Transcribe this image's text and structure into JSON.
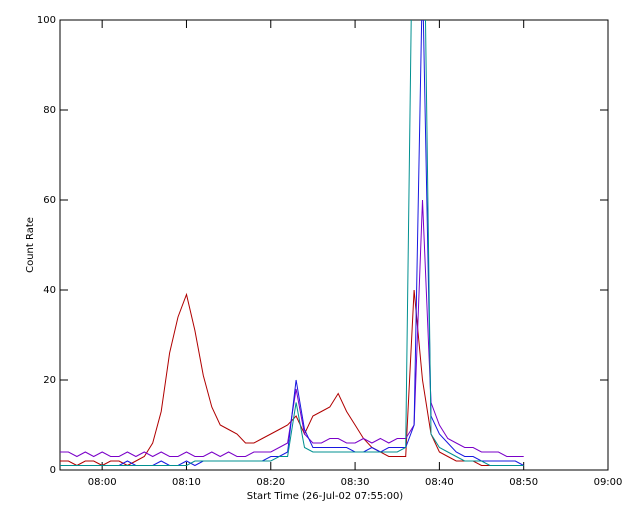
{
  "chart_data": {
    "type": "line",
    "y_label": "Count Rate",
    "x_label": "Start Time (26-Jul-02 07:55:00)",
    "x": [
      "07:55",
      "07:56",
      "07:57",
      "07:58",
      "07:59",
      "08:00",
      "08:01",
      "08:02",
      "08:03",
      "08:04",
      "08:05",
      "08:06",
      "08:07",
      "08:08",
      "08:09",
      "08:10",
      "08:11",
      "08:12",
      "08:13",
      "08:14",
      "08:15",
      "08:16",
      "08:17",
      "08:18",
      "08:19",
      "08:20",
      "08:21",
      "08:22",
      "08:23",
      "08:24",
      "08:25",
      "08:26",
      "08:27",
      "08:28",
      "08:29",
      "08:30",
      "08:31",
      "08:32",
      "08:33",
      "08:34",
      "08:35",
      "08:36",
      "08:37",
      "08:38",
      "08:39",
      "08:40",
      "08:41",
      "08:42",
      "08:43",
      "08:44",
      "08:45",
      "08:46",
      "08:47",
      "08:48",
      "08:49",
      "08:50"
    ],
    "series": [
      {
        "color": "#b00000",
        "values": [
          2,
          2,
          1,
          2,
          2,
          1,
          2,
          2,
          1,
          2,
          3,
          6,
          13,
          26,
          34,
          39,
          31,
          21,
          14,
          10,
          9,
          8,
          6,
          6,
          7,
          8,
          9,
          10,
          12,
          8,
          12,
          13,
          14,
          17,
          13,
          10,
          7,
          5,
          4,
          3,
          3,
          3,
          40,
          20,
          8,
          4,
          3,
          2,
          2,
          2,
          1,
          1,
          1,
          1,
          1,
          1
        ]
      },
      {
        "color": "#7a00c8",
        "values": [
          4,
          4,
          3,
          4,
          3,
          4,
          3,
          3,
          4,
          3,
          4,
          3,
          4,
          3,
          3,
          4,
          3,
          3,
          4,
          3,
          4,
          3,
          3,
          4,
          4,
          4,
          5,
          6,
          18,
          8,
          6,
          6,
          7,
          7,
          6,
          6,
          7,
          6,
          7,
          6,
          7,
          7,
          10,
          60,
          15,
          10,
          7,
          6,
          5,
          5,
          4,
          4,
          4,
          3,
          3,
          3
        ]
      },
      {
        "color": "#1818e0",
        "values": [
          1,
          1,
          1,
          1,
          1,
          1,
          1,
          1,
          2,
          1,
          1,
          1,
          2,
          1,
          1,
          2,
          1,
          2,
          2,
          2,
          2,
          2,
          2,
          2,
          2,
          3,
          3,
          4,
          20,
          9,
          5,
          5,
          5,
          5,
          5,
          4,
          4,
          5,
          4,
          5,
          5,
          5,
          10,
          110,
          12,
          8,
          6,
          4,
          3,
          3,
          2,
          2,
          2,
          2,
          2,
          1
        ]
      },
      {
        "color": "#009090",
        "values": [
          1,
          1,
          1,
          1,
          1,
          1,
          1,
          1,
          1,
          1,
          1,
          1,
          1,
          1,
          1,
          1,
          2,
          2,
          2,
          2,
          2,
          2,
          2,
          2,
          2,
          2,
          3,
          3,
          15,
          5,
          4,
          4,
          4,
          4,
          4,
          4,
          4,
          4,
          4,
          4,
          4,
          5,
          150,
          150,
          8,
          5,
          4,
          3,
          2,
          2,
          2,
          1,
          1,
          1,
          1,
          1
        ]
      }
    ],
    "xlim": [
      "07:55",
      "09:00"
    ],
    "xticks": [
      "08:00",
      "08:10",
      "08:20",
      "08:30",
      "08:40",
      "08:50",
      "09:00"
    ],
    "ylim": [
      0,
      100
    ],
    "yticks": [
      0,
      20,
      40,
      60,
      80,
      100
    ]
  }
}
